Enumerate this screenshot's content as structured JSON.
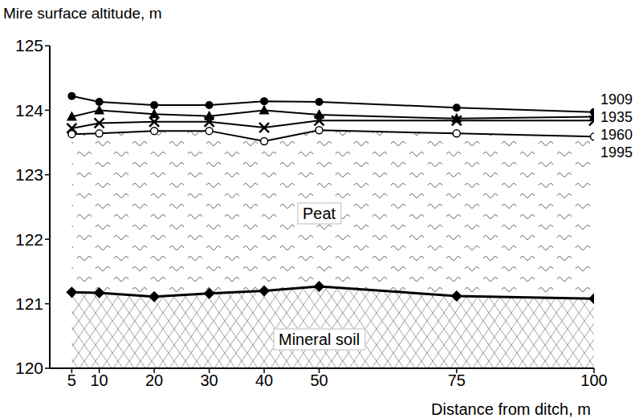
{
  "chart_data": {
    "type": "line",
    "xlabel": "Distance from ditch, m",
    "ylabel": "Mire surface altitude, m",
    "x": [
      5,
      10,
      20,
      30,
      40,
      50,
      75,
      100
    ],
    "series": [
      {
        "name": "1909",
        "color": "#000000",
        "marker": "circle",
        "values": [
          124.22,
          124.13,
          124.08,
          124.08,
          124.14,
          124.13,
          124.04,
          123.97
        ]
      },
      {
        "name": "1935",
        "color": "#000000",
        "marker": "triangle",
        "values": [
          123.9,
          124.0,
          123.94,
          123.91,
          124.0,
          123.93,
          123.87,
          123.9
        ]
      },
      {
        "name": "1960",
        "color": "#000000",
        "marker": "x",
        "values": [
          123.72,
          123.8,
          123.82,
          123.82,
          123.73,
          123.84,
          123.84,
          123.84
        ]
      },
      {
        "name": "1995",
        "color": "#000000",
        "marker": "circle_open",
        "values": [
          123.63,
          123.64,
          123.68,
          123.68,
          123.52,
          123.69,
          123.64,
          123.59
        ]
      },
      {
        "name": "Mineral soil",
        "color": "#000000",
        "marker": "diamond",
        "values": [
          121.18,
          121.17,
          121.11,
          121.16,
          121.2,
          121.27,
          121.12,
          121.08
        ]
      }
    ],
    "annotations": [
      "Peat"
    ],
    "xlim": [
      1,
      100
    ],
    "xticks": [
      5,
      10,
      20,
      30,
      40,
      50,
      75,
      100
    ],
    "ylim": [
      120,
      125
    ],
    "yticks": [
      120,
      121,
      122,
      123,
      124,
      125
    ],
    "grid": false
  }
}
